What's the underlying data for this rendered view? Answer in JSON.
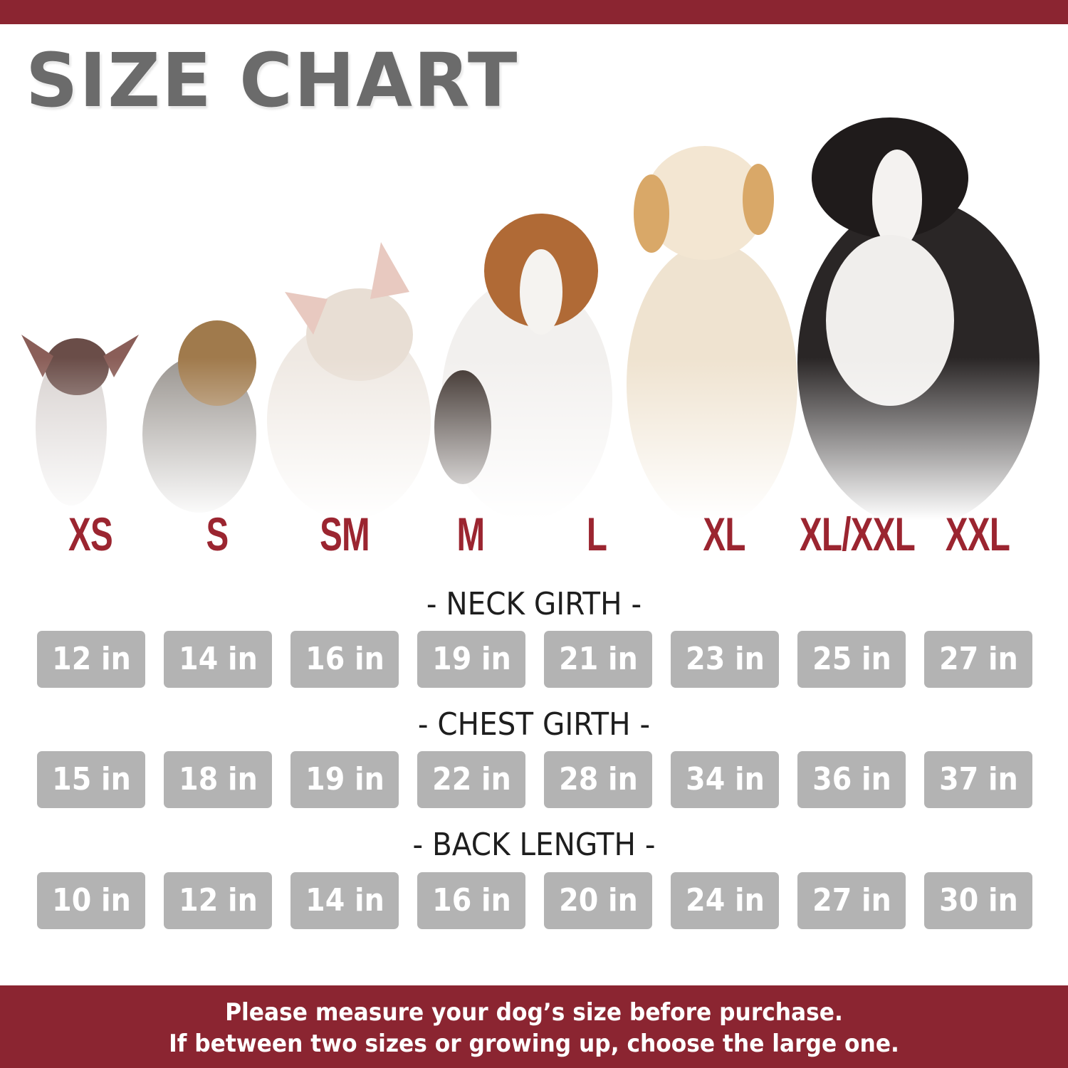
{
  "header": {
    "title": "SIZE CHART",
    "accent_color": "#8b2531"
  },
  "sizes": [
    "XS",
    "S",
    "SM",
    "M",
    "L",
    "XL",
    "XL/XXL",
    "XXL"
  ],
  "measurements": [
    {
      "label": "- NECK GIRTH -",
      "values": [
        "12 in",
        "14 in",
        "16 in",
        "19 in",
        "21 in",
        "23 in",
        "25 in",
        "27 in"
      ]
    },
    {
      "label": "- CHEST GIRTH -",
      "values": [
        "15 in",
        "18 in",
        "19 in",
        "22 in",
        "28 in",
        "34 in",
        "36 in",
        "37 in"
      ]
    },
    {
      "label": "- BACK LENGTH -",
      "values": [
        "10 in",
        "12 in",
        "14 in",
        "16 in",
        "20 in",
        "24 in",
        "27 in",
        "30 in"
      ]
    }
  ],
  "dogs": [
    "chihuahua",
    "yorkshire-terrier",
    "french-bulldog",
    "beagle",
    "golden-retriever",
    "bernese-mountain-dog"
  ],
  "footer": {
    "line1": "Please measure your dog’s size before purchase.",
    "line2": "If between two sizes or growing up, choose the large one."
  }
}
